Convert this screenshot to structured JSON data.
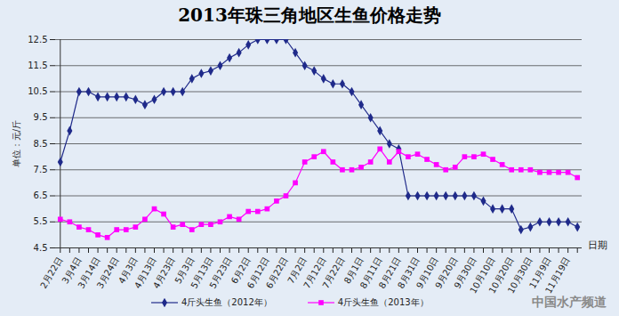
{
  "chart_data": {
    "type": "line",
    "title": "2013年珠三角地区生鱼价格走势",
    "x_label": "日期",
    "y_label": "单位：元/斤",
    "categories": [
      "2月22日",
      null,
      "3月4日",
      null,
      "3月14日",
      null,
      "3月24日",
      null,
      "4月3日",
      null,
      "4月13日",
      null,
      "4月23日",
      null,
      "5月3日",
      null,
      "5月13日",
      null,
      "5月23日",
      null,
      "6月2日",
      null,
      "6月12日",
      null,
      "6月22日",
      null,
      "7月2日",
      null,
      "7月12日",
      null,
      "7月22日",
      null,
      "8月1日",
      null,
      "8月11日",
      null,
      "8月21日",
      null,
      "8月31日",
      null,
      "9月10日",
      null,
      "9月20日",
      null,
      "9月30日",
      null,
      "10月10日",
      null,
      "10月20日",
      null,
      "10月30日",
      null,
      "11月9日",
      null,
      "11月19日",
      null
    ],
    "series": [
      {
        "name": "4斤头生鱼（2012年）",
        "color": "#1f2a8a",
        "marker": "diamond",
        "values": [
          7.8,
          9.0,
          10.5,
          10.5,
          10.3,
          10.3,
          10.3,
          10.3,
          10.2,
          10.0,
          10.2,
          10.5,
          10.5,
          10.5,
          11.0,
          11.2,
          11.3,
          11.5,
          11.8,
          12.0,
          12.3,
          12.5,
          12.5,
          12.5,
          12.5,
          12.0,
          11.5,
          11.3,
          11.0,
          10.8,
          10.8,
          10.5,
          10.0,
          9.5,
          9.0,
          8.5,
          8.3,
          6.5,
          6.5,
          6.5,
          6.5,
          6.5,
          6.5,
          6.5,
          6.5,
          6.3,
          6.0,
          6.0,
          6.0,
          5.2,
          5.3,
          5.5,
          5.5,
          5.5,
          5.5,
          5.3
        ]
      },
      {
        "name": "4斤头生鱼（2013年）",
        "color": "#ff00ff",
        "marker": "square",
        "values": [
          5.6,
          5.5,
          5.3,
          5.2,
          5.0,
          4.9,
          5.2,
          5.2,
          5.3,
          5.6,
          6.0,
          5.8,
          5.3,
          5.4,
          5.2,
          5.4,
          5.4,
          5.5,
          5.7,
          5.6,
          5.9,
          5.9,
          6.0,
          6.3,
          6.5,
          7.0,
          7.8,
          8.0,
          8.2,
          7.8,
          7.5,
          7.5,
          7.6,
          7.8,
          8.3,
          7.8,
          8.2,
          8.0,
          8.1,
          7.9,
          7.7,
          7.5,
          7.6,
          8.0,
          8.0,
          8.1,
          7.9,
          7.7,
          7.5,
          7.5,
          7.5,
          7.4,
          7.4,
          7.4,
          7.4,
          7.2
        ]
      }
    ],
    "ylim": [
      4.5,
      12.5
    ],
    "yticks": [
      4.5,
      5.5,
      6.5,
      7.5,
      8.5,
      9.5,
      10.5,
      11.5,
      12.5
    ],
    "grid": true,
    "legend": "bottom",
    "annotations": [
      "中国水产频道"
    ]
  }
}
